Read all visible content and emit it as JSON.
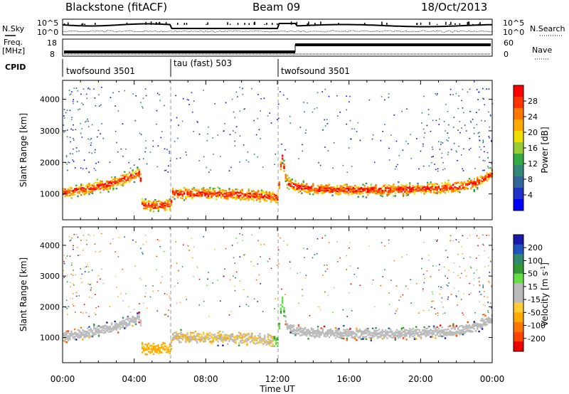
{
  "header": {
    "station": "Blackstone (fitACF)",
    "beam": "Beam 09",
    "date": "18/Oct/2013"
  },
  "summary": {
    "left_top_label": "N.Sky",
    "left_mid_label_1": "Freq.",
    "left_mid_label_2": "[MHz]",
    "cpid_label": "CPID",
    "right_top_label": "N.Search",
    "right_mid_label": "Nave",
    "nsky_ticks": [
      "10^5",
      "10^0"
    ],
    "freq_ticks": [
      "18",
      "8"
    ],
    "nsearch_ticks": [
      "10^5",
      "10^0"
    ],
    "nave_ticks": [
      "60",
      "0"
    ],
    "cpid_segments": [
      {
        "label": "twofsound 3501",
        "start_hour": 0,
        "end_hour": 6
      },
      {
        "label": "tau (fast) 503",
        "start_hour": 6,
        "end_hour": 12
      },
      {
        "label": "twofsound 3501",
        "start_hour": 12,
        "end_hour": 24
      }
    ]
  },
  "power_colorbar": {
    "label": "Power [dB]",
    "ticks": [
      "28",
      "24",
      "20",
      "16",
      "12",
      "8",
      "4"
    ],
    "colors": [
      "#ff0000",
      "#ff3300",
      "#ff7700",
      "#ffaa00",
      "#eedd00",
      "#99cc33",
      "#33aa44",
      "#338877",
      "#336699",
      "#2233cc",
      "#0000ff"
    ]
  },
  "velocity_colorbar": {
    "label": "Velocity [m s",
    "label_sup": "-1",
    "label_end": "]",
    "ticks": [
      "200",
      "100",
      "50",
      "15",
      "-15",
      "-50",
      "-100",
      "-200"
    ],
    "colors": [
      "#1a1aaa",
      "#2255bb",
      "#2f8a70",
      "#339933",
      "#66dd44",
      "#bbbbbb",
      "#bbbbbb",
      "#ffcc33",
      "#ffaa00",
      "#ff7700",
      "#ff4400",
      "#ee0000"
    ]
  },
  "chart_data": [
    {
      "type": "heatmap",
      "title": "",
      "xlabel": "Time UT",
      "ylabel": "Slant Range [km]",
      "xlim": [
        0,
        24
      ],
      "ylim": [
        180,
        4600
      ],
      "x_tick_labels": [
        "00:00",
        "04:00",
        "08:00",
        "12:00",
        "16:00",
        "20:00",
        "00:00"
      ],
      "y_ticks": [
        1000,
        2000,
        3000,
        4000
      ],
      "y_tick_labels": [
        "1000",
        "2000",
        "3000",
        "4000"
      ],
      "quantity": "Power [dB]",
      "color_range": [
        0,
        30
      ],
      "band_traces": [
        {
          "name": "main",
          "x": [
            0,
            1,
            2,
            3,
            4.3,
            4.4,
            5,
            6,
            6.1,
            8,
            10,
            11.5,
            12,
            12.2,
            12.5,
            13,
            14,
            16,
            18,
            20,
            22,
            23,
            24
          ],
          "y": [
            1050,
            1150,
            1250,
            1400,
            1700,
            700,
            650,
            680,
            1050,
            1020,
            1000,
            950,
            900,
            2300,
            1400,
            1250,
            1180,
            1150,
            1150,
            1180,
            1250,
            1350,
            1650
          ]
        }
      ]
    },
    {
      "type": "heatmap",
      "title": "",
      "xlabel": "Time UT",
      "ylabel": "Slant Range [km]",
      "xlim": [
        0,
        24
      ],
      "ylim": [
        180,
        4600
      ],
      "x_tick_labels": [
        "00:00",
        "04:00",
        "08:00",
        "12:00",
        "16:00",
        "20:00",
        "00:00"
      ],
      "y_ticks": [
        1000,
        2000,
        3000,
        4000
      ],
      "y_tick_labels": [
        "1000",
        "2000",
        "3000",
        "4000"
      ],
      "quantity": "Velocity [m s-1]",
      "color_range": [
        -200,
        200
      ],
      "band_traces": [
        {
          "name": "main",
          "x": [
            0,
            1,
            2,
            3,
            4.3,
            4.4,
            5,
            6,
            6.1,
            8,
            10,
            11.5,
            12,
            12.2,
            12.5,
            13,
            14,
            16,
            18,
            20,
            22,
            23,
            24
          ],
          "y": [
            1050,
            1150,
            1250,
            1400,
            1700,
            700,
            650,
            680,
            1050,
            1020,
            1000,
            950,
            900,
            2300,
            1400,
            1250,
            1180,
            1150,
            1150,
            1180,
            1250,
            1350,
            1650
          ]
        }
      ]
    }
  ]
}
